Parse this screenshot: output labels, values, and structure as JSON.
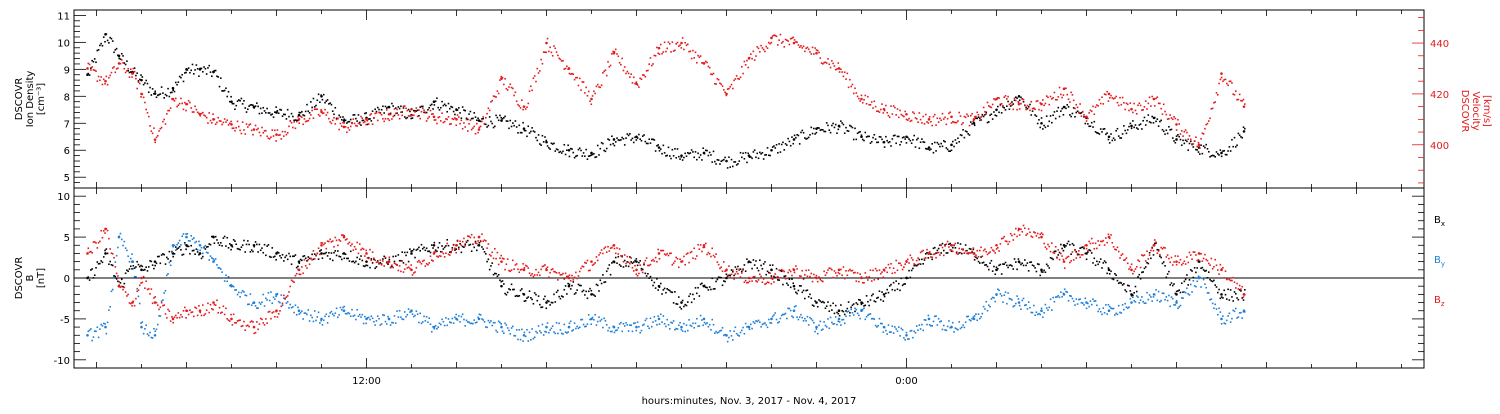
{
  "footer": {
    "xlabel": "hours:minutes, Nov.  3, 2017 - Nov.  4, 2017"
  },
  "colors": {
    "black": "#000000",
    "red": "#e41a1c",
    "blue": "#1f7fd6"
  },
  "chart_data": [
    {
      "type": "scatter",
      "panel": "top",
      "x_unit": "hours since 2017-11-03 00:00",
      "xlim": [
        5.5,
        35.5
      ],
      "xticks": [
        {
          "value": 12,
          "label": "12:00"
        },
        {
          "value": 24,
          "label": "0:00"
        }
      ],
      "left_axis": {
        "label_lines": [
          "DSCOVR",
          "Ion Density",
          "[cm⁻³]"
        ],
        "ylim": [
          4.6,
          11.2
        ],
        "ticks": [
          5,
          6,
          7,
          8,
          9,
          10,
          11
        ],
        "color": "#000000"
      },
      "right_axis": {
        "label_lines": [
          "DSCOVR",
          "Velocity",
          "[km/s]"
        ],
        "ylim": [
          383,
          453
        ],
        "ticks": [
          400,
          420,
          440
        ],
        "color": "#e41a1c"
      },
      "series": [
        {
          "axis": "left",
          "color": "#000000",
          "x": [
            5.8,
            6.2,
            6.5,
            6.8,
            7.0,
            7.3,
            7.7,
            8.0,
            8.3,
            8.6,
            9.0,
            9.5,
            10.0,
            10.5,
            11.0,
            11.5,
            12.0,
            12.5,
            13.0,
            13.5,
            14.0,
            14.5,
            15.0,
            15.5,
            16.0,
            16.5,
            17.0,
            17.5,
            18.0,
            18.5,
            19.0,
            19.5,
            20.0,
            20.5,
            21.0,
            21.5,
            22.0,
            22.5,
            23.0,
            23.5,
            24.0,
            24.5,
            25.0,
            25.5,
            26.0,
            26.5,
            27.0,
            27.5,
            28.0,
            28.5,
            29.0,
            29.5,
            30.0,
            30.5,
            31.0,
            31.5
          ],
          "y": [
            8.8,
            10.3,
            9.5,
            8.9,
            8.6,
            8.1,
            8.3,
            9.0,
            9.0,
            8.9,
            7.8,
            7.6,
            7.4,
            7.3,
            8.0,
            7.1,
            7.2,
            7.6,
            7.3,
            7.8,
            7.5,
            7.1,
            7.1,
            6.8,
            6.3,
            6.0,
            5.9,
            6.4,
            6.5,
            6.1,
            5.8,
            5.9,
            5.6,
            5.8,
            6.0,
            6.4,
            6.8,
            6.9,
            6.5,
            6.3,
            6.5,
            6.1,
            6.2,
            7.0,
            7.5,
            8.0,
            7.0,
            7.6,
            7.2,
            6.5,
            6.9,
            7.2,
            6.4,
            6.1,
            5.9,
            6.7
          ]
        },
        {
          "axis": "right",
          "color": "#e41a1c",
          "x": [
            5.8,
            6.2,
            6.5,
            6.8,
            7.0,
            7.3,
            7.7,
            8.0,
            8.3,
            8.6,
            9.0,
            9.5,
            10.0,
            10.5,
            11.0,
            11.5,
            12.0,
            12.5,
            13.0,
            13.5,
            14.0,
            14.5,
            15.0,
            15.5,
            16.0,
            16.5,
            17.0,
            17.5,
            18.0,
            18.5,
            19.0,
            19.5,
            20.0,
            20.5,
            21.0,
            21.5,
            22.0,
            22.5,
            23.0,
            23.5,
            24.0,
            24.5,
            25.0,
            25.5,
            26.0,
            26.5,
            27.0,
            27.5,
            28.0,
            28.5,
            29.0,
            29.5,
            30.0,
            30.5,
            31.0,
            31.5
          ],
          "y": [
            430,
            425,
            432,
            428,
            420,
            402,
            418,
            416,
            412,
            410,
            408,
            406,
            404,
            410,
            413,
            407,
            410,
            412,
            414,
            411,
            410,
            406,
            426,
            415,
            440,
            430,
            418,
            436,
            424,
            438,
            440,
            432,
            420,
            434,
            442,
            440,
            436,
            430,
            418,
            414,
            412,
            410,
            411,
            410,
            418,
            416,
            416,
            422,
            411,
            420,
            414,
            418,
            408,
            400,
            428,
            415
          ]
        }
      ]
    },
    {
      "type": "scatter",
      "panel": "bottom",
      "x_unit": "hours since 2017-11-03 00:00",
      "xlim": [
        5.5,
        35.5
      ],
      "xticks": [
        {
          "value": 12,
          "label": "12:00"
        },
        {
          "value": 24,
          "label": "0:00"
        }
      ],
      "left_axis": {
        "label_lines": [
          "DSCOVR",
          "B",
          "[nT]"
        ],
        "ylim": [
          -11,
          11
        ],
        "ticks": [
          -10,
          -5,
          0,
          5,
          10
        ],
        "color": "#000000"
      },
      "zero_line": true,
      "series": [
        {
          "name": "Bx",
          "color": "#000000",
          "x": [
            5.8,
            6.2,
            6.5,
            6.8,
            7.0,
            7.3,
            7.7,
            8.0,
            8.3,
            8.6,
            9.0,
            9.5,
            10.0,
            10.5,
            11.0,
            11.5,
            12.0,
            12.5,
            13.0,
            13.5,
            14.0,
            14.5,
            15.0,
            15.5,
            16.0,
            16.5,
            17.0,
            17.5,
            18.0,
            18.5,
            19.0,
            19.5,
            20.0,
            20.5,
            21.0,
            21.5,
            22.0,
            22.5,
            23.0,
            23.5,
            24.0,
            24.5,
            25.0,
            25.5,
            26.0,
            26.5,
            27.0,
            27.5,
            28.0,
            28.5,
            29.0,
            29.5,
            30.0,
            30.5,
            31.0,
            31.5
          ],
          "y": [
            0,
            3,
            -1,
            2,
            1,
            2,
            3,
            4,
            3,
            5,
            4,
            4,
            3,
            2,
            3,
            3,
            2,
            2,
            3,
            4,
            4,
            4,
            -1,
            -2,
            -3,
            -1,
            -2,
            2,
            2,
            -1,
            -3,
            -1,
            0,
            2,
            1,
            -1,
            -3,
            -4,
            -3,
            -2,
            0,
            3,
            4,
            3,
            1,
            2,
            1,
            4,
            3,
            1,
            -2,
            4,
            -2,
            2,
            -2,
            -2
          ]
        },
        {
          "name": "By",
          "color": "#1f7fd6",
          "x": [
            5.8,
            6.2,
            6.5,
            6.8,
            7.0,
            7.3,
            7.7,
            8.0,
            8.3,
            8.6,
            9.0,
            9.5,
            10.0,
            10.5,
            11.0,
            11.5,
            12.0,
            12.5,
            13.0,
            13.5,
            14.0,
            14.5,
            15.0,
            15.5,
            16.0,
            16.5,
            17.0,
            17.5,
            18.0,
            18.5,
            19.0,
            19.5,
            20.0,
            20.5,
            21.0,
            21.5,
            22.0,
            22.5,
            23.0,
            23.5,
            24.0,
            24.5,
            25.0,
            25.5,
            26.0,
            26.5,
            27.0,
            27.5,
            28.0,
            28.5,
            29.0,
            29.5,
            30.0,
            30.5,
            31.0,
            31.5
          ],
          "y": [
            -7,
            -6,
            5,
            2,
            -6,
            -7,
            4,
            5,
            4,
            2,
            -1,
            -3,
            -2,
            -4,
            -5,
            -4,
            -5,
            -5,
            -4,
            -6,
            -5,
            -5,
            -6,
            -7,
            -6,
            -6,
            -5,
            -6,
            -6,
            -5,
            -6,
            -5,
            -7,
            -6,
            -5,
            -4,
            -6,
            -5,
            -4,
            -6,
            -7,
            -5,
            -6,
            -5,
            -2,
            -3,
            -4,
            -2,
            -3,
            -4,
            -3,
            -2,
            -3,
            0,
            -5,
            -4
          ]
        },
        {
          "name": "Bz",
          "color": "#e41a1c",
          "x": [
            5.8,
            6.2,
            6.5,
            6.8,
            7.0,
            7.3,
            7.7,
            8.0,
            8.3,
            8.6,
            9.0,
            9.5,
            10.0,
            10.5,
            11.0,
            11.5,
            12.0,
            12.5,
            13.0,
            13.5,
            14.0,
            14.5,
            15.0,
            15.5,
            16.0,
            16.5,
            17.0,
            17.5,
            18.0,
            18.5,
            19.0,
            19.5,
            20.0,
            20.5,
            21.0,
            21.5,
            22.0,
            22.5,
            23.0,
            23.5,
            24.0,
            24.5,
            25.0,
            25.5,
            26.0,
            26.5,
            27.0,
            27.5,
            28.0,
            28.5,
            29.0,
            29.5,
            30.0,
            30.5,
            31.0,
            31.5
          ],
          "y": [
            3,
            6,
            -1,
            -3,
            0,
            -3,
            -5,
            -4,
            -4,
            -3,
            -5,
            -6,
            -4,
            1,
            4,
            5,
            3,
            2,
            1,
            3,
            4,
            5,
            2,
            1,
            1,
            0,
            2,
            4,
            1,
            3,
            2,
            4,
            1,
            0,
            0,
            1,
            0,
            1,
            0,
            1,
            2,
            3,
            4,
            3,
            4,
            6,
            5,
            2,
            4,
            5,
            1,
            4,
            2,
            3,
            1,
            -2
          ]
        }
      ],
      "legend": [
        {
          "label": "B",
          "sub": "x",
          "color": "#000000"
        },
        {
          "label": "B",
          "sub": "y",
          "color": "#1f7fd6"
        },
        {
          "label": "B",
          "sub": "z",
          "color": "#e41a1c"
        }
      ],
      "legend_placement": "right"
    }
  ]
}
